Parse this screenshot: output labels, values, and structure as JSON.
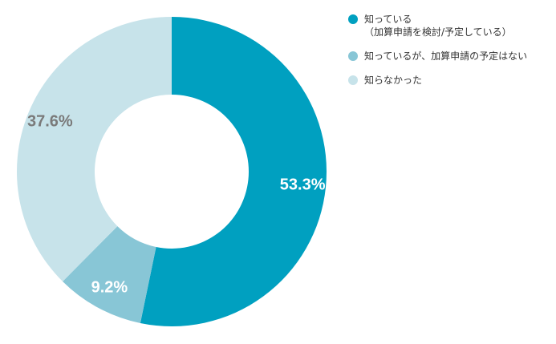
{
  "chart_data": {
    "type": "pie",
    "donut": true,
    "slices": [
      {
        "label": "知っている\n（加算申請を検討/予定している）",
        "value": 53.3,
        "display": "53.3%",
        "color": "#00a0c0",
        "label_color": "#ffffff"
      },
      {
        "label": "知っているが、加算申請の予定はない",
        "value": 9.2,
        "display": "9.2%",
        "color": "#88c6d6",
        "label_color": "#ffffff"
      },
      {
        "label": "知らなかった",
        "value": 37.6,
        "display": "37.6%",
        "color": "#c7e3ea",
        "label_color": "#7a7a7a"
      }
    ],
    "start_angle": "12 o'clock",
    "direction": "clockwise",
    "legend_position": "right"
  }
}
